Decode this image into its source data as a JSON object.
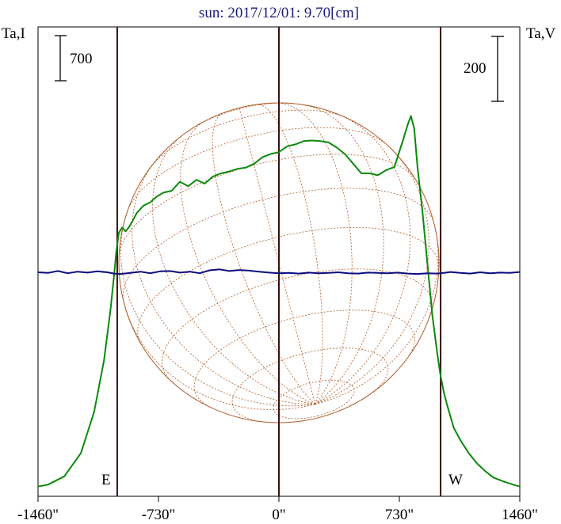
{
  "title": "sun: 2017/12/01: 9.70[cm]",
  "left_axis_label": "Ta,I",
  "right_axis_label": "Ta,V",
  "left_scale_label": "700",
  "right_scale_label": "200",
  "limb_labels": {
    "east": "E",
    "west": "W"
  },
  "colors": {
    "stokes_I": "#0a8a0a",
    "stokes_V": "#0a0a80",
    "solar_disk": "#b05a28",
    "guide_lines": "#3a1010",
    "frame": "#000000",
    "title": "#1a1a7a"
  },
  "chart_data": {
    "type": "line",
    "title": "sun: 2017/12/01: 9.70[cm]",
    "xlabel": "",
    "xunit": "arcsec",
    "xlim": [
      -1460,
      1460
    ],
    "x_ticks": [
      -1460,
      -730,
      0,
      730,
      1460
    ],
    "x_tick_labels": [
      "-1460\"",
      "-730\"",
      "0\"",
      "730\"",
      "1460\""
    ],
    "vertical_markers": [
      {
        "x": -980,
        "label": "E"
      },
      {
        "x": 0,
        "label": ""
      },
      {
        "x": 980,
        "label": "W"
      }
    ],
    "scale_bars": [
      {
        "axis": "left",
        "label": "700"
      },
      {
        "axis": "right",
        "label": "200"
      }
    ],
    "series": [
      {
        "name": "Ta,I",
        "axis": "left",
        "unit": "relative (left scale bar = 700)",
        "x": [
          -1460,
          -1400,
          -1300,
          -1200,
          -1120,
          -1060,
          -1020,
          -1000,
          -985,
          -970,
          -950,
          -930,
          -910,
          -890,
          -860,
          -820,
          -780,
          -740,
          -700,
          -650,
          -600,
          -550,
          -500,
          -450,
          -400,
          -350,
          -300,
          -250,
          -200,
          -150,
          -100,
          -50,
          0,
          50,
          100,
          150,
          200,
          250,
          300,
          350,
          400,
          450,
          500,
          550,
          600,
          650,
          700,
          750,
          780,
          800,
          820,
          840,
          870,
          900,
          930,
          960,
          980,
          1000,
          1020,
          1060,
          1100,
          1150,
          1200,
          1250,
          1300,
          1360,
          1420,
          1460
        ],
        "y": [
          40,
          70,
          200,
          560,
          1200,
          2000,
          2800,
          3300,
          3700,
          3980,
          4060,
          4000,
          4060,
          4150,
          4290,
          4400,
          4450,
          4540,
          4600,
          4630,
          4770,
          4700,
          4800,
          4740,
          4850,
          4900,
          4930,
          4970,
          4990,
          5050,
          5150,
          5200,
          5230,
          5320,
          5350,
          5400,
          5410,
          5400,
          5380,
          5300,
          5200,
          5050,
          4900,
          4900,
          4870,
          4950,
          5000,
          5400,
          5650,
          5790,
          5600,
          5000,
          4300,
          3500,
          2700,
          2100,
          1750,
          1500,
          1300,
          950,
          760,
          560,
          400,
          280,
          180,
          120,
          70,
          40
        ]
      },
      {
        "name": "Ta,V",
        "axis": "right",
        "unit": "relative (right scale bar = 200)",
        "x": [
          -1460,
          -1400,
          -1340,
          -1280,
          -1220,
          -1160,
          -1100,
          -1040,
          -1000,
          -960,
          -900,
          -840,
          -780,
          -720,
          -660,
          -600,
          -540,
          -480,
          -420,
          -360,
          -300,
          -240,
          -180,
          -120,
          -60,
          0,
          60,
          120,
          180,
          240,
          300,
          360,
          420,
          480,
          540,
          600,
          660,
          720,
          780,
          840,
          900,
          960,
          1000,
          1040,
          1100,
          1160,
          1220,
          1280,
          1340,
          1400,
          1460
        ],
        "y": [
          0,
          -2,
          4,
          -3,
          2,
          -1,
          3,
          0,
          -4,
          -5,
          -2,
          2,
          -3,
          3,
          4,
          -1,
          2,
          -3,
          6,
          9,
          4,
          7,
          5,
          2,
          -1,
          -3,
          -2,
          -4,
          -1,
          -3,
          -2,
          0,
          -3,
          -4,
          -1,
          -2,
          -3,
          -1,
          -4,
          -5,
          -3,
          -4,
          -2,
          1,
          -2,
          -4,
          0,
          -3,
          -1,
          -2,
          1
        ]
      }
    ]
  }
}
